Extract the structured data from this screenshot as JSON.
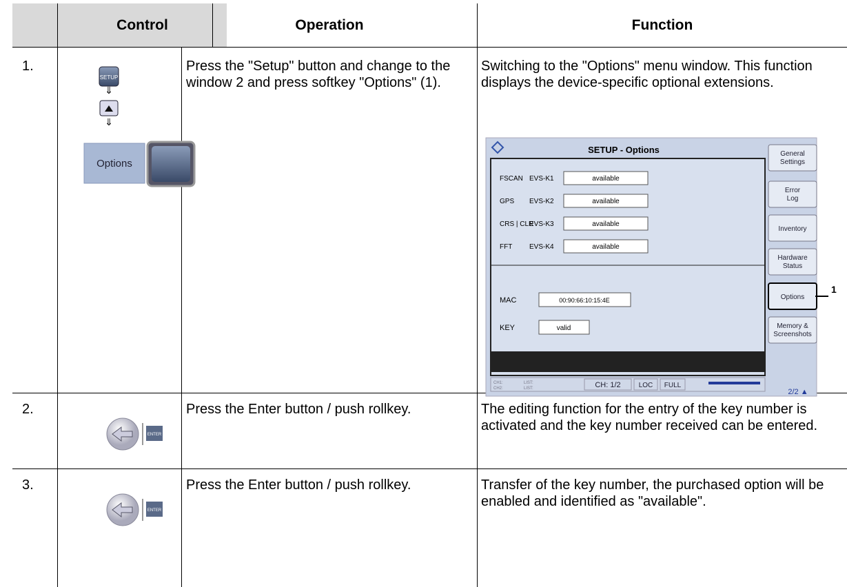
{
  "table": {
    "header": [
      "Control",
      "Operation",
      "Function"
    ],
    "rows": [
      {
        "step": "1.",
        "control": {
          "button": "SETUP",
          "softkey": "Options"
        },
        "operation": "Press the \"Setup\" button and change to the window 2 and press softkey \"Options\" (1).",
        "function": "Switching to the \"Options\" menu window. This function displays the device-specific optional extensions."
      },
      {
        "step": "2.",
        "control": {
          "button": "ENTER"
        },
        "operation": "Press the Enter button / push rollkey.",
        "function": "The editing function for the entry of the key number is activated and the key number received can be entered."
      },
      {
        "step": "3.",
        "control": {
          "button": "ENTER"
        },
        "operation": "Press the Enter button / push rollkey.",
        "function": "Transfer of the key number, the purchased option will be enabled and identified as \"available\"."
      }
    ]
  },
  "screenshot": {
    "title": "SETUP - Options",
    "options": [
      {
        "name": "FSCAN",
        "code": "EVS-K1",
        "status": "available"
      },
      {
        "name": "GPS",
        "code": "EVS-K2",
        "status": "available"
      },
      {
        "name": "CRS | CLR",
        "code": "EVS-K3",
        "status": "available"
      },
      {
        "name": "FFT",
        "code": "EVS-K4",
        "status": "available"
      }
    ],
    "mac": {
      "label": "MAC",
      "value": "00:90:66:10:15:4E"
    },
    "key": {
      "label": "KEY",
      "value": "valid"
    },
    "softkeys": [
      "General Settings",
      "Error Log",
      "Inventory",
      "Hardware Status",
      "Options",
      "Memory & Screenshots"
    ],
    "status": {
      "ch1": "CH1:",
      "ch2": "CH2:",
      "list1": "LIST:",
      "list2": "LIST:",
      "channel": "CH: 1/2",
      "loc": "LOC",
      "full": "FULL"
    },
    "page": "2/2 ▲",
    "callout": "1"
  }
}
